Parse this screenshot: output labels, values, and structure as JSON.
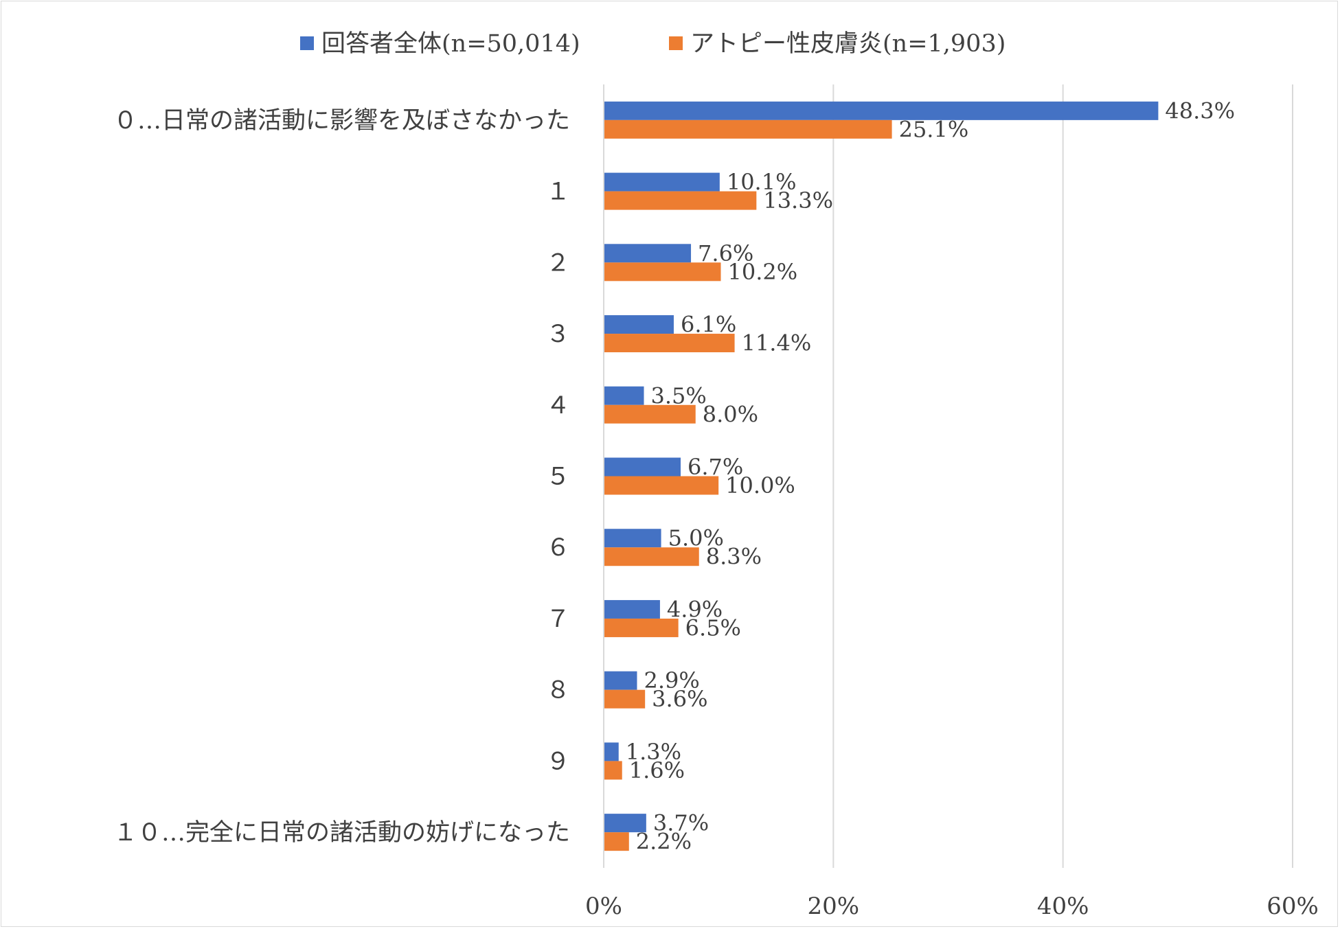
{
  "chart_data": {
    "type": "bar",
    "orientation": "horizontal",
    "categories": [
      "０…日常の諸活動に影響を及ぼさなかった",
      "１",
      "２",
      "３",
      "４",
      "５",
      "６",
      "７",
      "８",
      "９",
      "１０…完全に日常の諸活動の妨げになった"
    ],
    "series": [
      {
        "name": "回答者全体(n=50,014)",
        "color": "#4472C4",
        "values": [
          48.3,
          10.1,
          7.6,
          6.1,
          3.5,
          6.7,
          5.0,
          4.9,
          2.9,
          1.3,
          3.7
        ],
        "labels": [
          "48.3%",
          "10.1%",
          "7.6%",
          "6.1%",
          "3.5%",
          "6.7%",
          "5.0%",
          "4.9%",
          "2.9%",
          "1.3%",
          "3.7%"
        ]
      },
      {
        "name": "アトピー性皮膚炎(n=1,903)",
        "color": "#ED7D31",
        "values": [
          25.1,
          13.3,
          10.2,
          11.4,
          8.0,
          10.0,
          8.3,
          6.5,
          3.6,
          1.6,
          2.2
        ],
        "labels": [
          "25.1%",
          "13.3%",
          "10.2%",
          "11.4%",
          "8.0%",
          "10.0%",
          "8.3%",
          "6.5%",
          "3.6%",
          "1.6%",
          "2.2%"
        ]
      }
    ],
    "xlim": [
      0,
      60
    ],
    "xticks": [
      0,
      20,
      40,
      60
    ],
    "xtick_labels": [
      "0%",
      "20%",
      "40%",
      "60%"
    ],
    "grid": true,
    "legend_position": "top"
  }
}
